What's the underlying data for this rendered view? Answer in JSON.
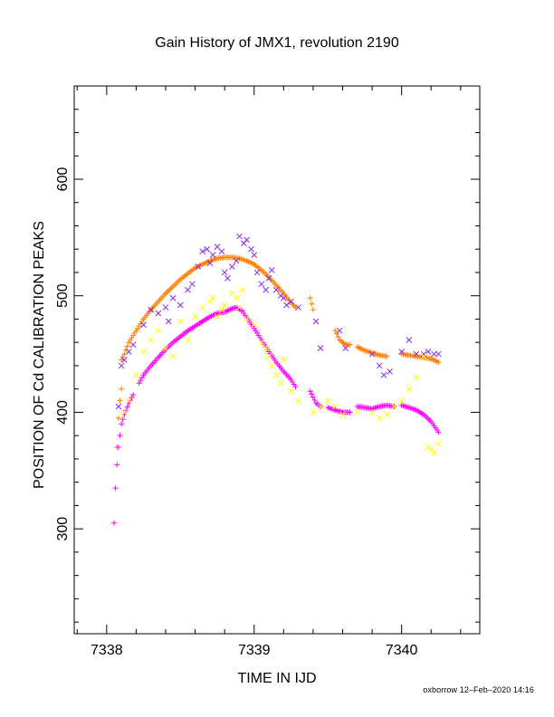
{
  "chart_data": {
    "type": "scatter",
    "title": "Gain History of JMX1, revolution 2190",
    "xlabel": "TIME IN IJD",
    "ylabel": "POSITION OF Cd CALIBRATION PEAKS",
    "xlim": [
      7337.78,
      7340.53
    ],
    "ylim": [
      210,
      680
    ],
    "x_ticks": [
      7338,
      7339,
      7340
    ],
    "y_ticks": [
      300,
      400,
      500,
      600
    ],
    "grid": false,
    "colors": {
      "purple": "#8a2be2",
      "orange": "#ff7f00",
      "yellow": "#ffff00",
      "magenta": "#ff00ff"
    },
    "series": [
      {
        "marker": "plus",
        "color": "orange",
        "dense": true,
        "segments": [
          [
            [
              7338.07,
              370
            ],
            [
              7338.08,
              395
            ],
            [
              7338.09,
              410
            ],
            [
              7338.1,
              420
            ]
          ],
          [
            [
              7338.1,
              445
            ],
            [
              7338.12,
              450
            ],
            [
              7338.15,
              460
            ],
            [
              7338.2,
              470
            ],
            [
              7338.25,
              480
            ],
            [
              7338.3,
              488
            ],
            [
              7338.35,
              495
            ],
            [
              7338.4,
              502
            ],
            [
              7338.45,
              508
            ],
            [
              7338.5,
              514
            ],
            [
              7338.55,
              519
            ],
            [
              7338.6,
              524
            ],
            [
              7338.65,
              527
            ],
            [
              7338.7,
              530
            ],
            [
              7338.75,
              532
            ],
            [
              7338.8,
              533
            ],
            [
              7338.85,
              533
            ],
            [
              7338.9,
              532
            ],
            [
              7338.95,
              530
            ],
            [
              7339.0,
              527
            ],
            [
              7339.05,
              522
            ],
            [
              7339.1,
              516
            ],
            [
              7339.15,
              509
            ],
            [
              7339.2,
              502
            ],
            [
              7339.25,
              494
            ],
            [
              7339.28,
              490
            ]
          ],
          [
            [
              7339.38,
              498
            ],
            [
              7339.4,
              488
            ]
          ],
          [
            [
              7339.55,
              470
            ],
            [
              7339.58,
              462
            ],
            [
              7339.62,
              458
            ],
            [
              7339.65,
              458
            ]
          ],
          [
            [
              7339.7,
              456
            ],
            [
              7339.75,
              453
            ],
            [
              7339.8,
              451
            ],
            [
              7339.85,
              449
            ],
            [
              7339.9,
              448
            ]
          ],
          [
            [
              7340.0,
              450
            ],
            [
              7340.05,
              449
            ],
            [
              7340.1,
              448
            ],
            [
              7340.15,
              447
            ],
            [
              7340.2,
              446
            ],
            [
              7340.25,
              443
            ]
          ]
        ]
      },
      {
        "marker": "plus",
        "color": "magenta",
        "dense": true,
        "segments": [
          [
            [
              7338.05,
              305
            ],
            [
              7338.06,
              335
            ],
            [
              7338.07,
              355
            ],
            [
              7338.08,
              370
            ],
            [
              7338.09,
              380
            ],
            [
              7338.1,
              390
            ],
            [
              7338.12,
              398
            ],
            [
              7338.15,
              408
            ],
            [
              7338.18,
              415
            ]
          ],
          [
            [
              7338.22,
              425
            ],
            [
              7338.25,
              432
            ],
            [
              7338.3,
              440
            ],
            [
              7338.35,
              447
            ],
            [
              7338.4,
              454
            ],
            [
              7338.45,
              460
            ],
            [
              7338.5,
              465
            ],
            [
              7338.55,
              470
            ],
            [
              7338.6,
              474
            ],
            [
              7338.65,
              478
            ],
            [
              7338.7,
              482
            ],
            [
              7338.75,
              485
            ],
            [
              7338.8,
              486
            ],
            [
              7338.85,
              489
            ],
            [
              7338.88,
              490
            ],
            [
              7338.92,
              487
            ],
            [
              7338.95,
              481
            ],
            [
              7339.0,
              472
            ],
            [
              7339.05,
              462
            ],
            [
              7339.1,
              452
            ],
            [
              7339.15,
              443
            ],
            [
              7339.2,
              435
            ],
            [
              7339.25,
              428
            ],
            [
              7339.28,
              422
            ]
          ],
          [
            [
              7339.38,
              418
            ],
            [
              7339.4,
              413
            ],
            [
              7339.42,
              408
            ],
            [
              7339.45,
              405
            ]
          ],
          [
            [
              7339.5,
              404
            ],
            [
              7339.55,
              402
            ],
            [
              7339.6,
              400
            ],
            [
              7339.65,
              400
            ]
          ],
          [
            [
              7339.7,
              405
            ],
            [
              7339.75,
              404
            ],
            [
              7339.8,
              403
            ],
            [
              7339.85,
              405
            ],
            [
              7339.9,
              406
            ],
            [
              7339.95,
              405
            ]
          ],
          [
            [
              7340.0,
              406
            ],
            [
              7340.05,
              404
            ],
            [
              7340.1,
              402
            ],
            [
              7340.15,
              398
            ],
            [
              7340.2,
              392
            ],
            [
              7340.25,
              383
            ]
          ]
        ]
      },
      {
        "marker": "x",
        "color": "purple",
        "dense": false,
        "points": [
          [
            7338.08,
            405
          ],
          [
            7338.1,
            440
          ],
          [
            7338.12,
            445
          ],
          [
            7338.15,
            452
          ],
          [
            7338.18,
            458
          ],
          [
            7338.25,
            475
          ],
          [
            7338.3,
            488
          ],
          [
            7338.35,
            485
          ],
          [
            7338.4,
            490
          ],
          [
            7338.42,
            478
          ],
          [
            7338.45,
            498
          ],
          [
            7338.5,
            492
          ],
          [
            7338.55,
            505
          ],
          [
            7338.58,
            510
          ],
          [
            7338.62,
            525
          ],
          [
            7338.65,
            538
          ],
          [
            7338.68,
            540
          ],
          [
            7338.7,
            528
          ],
          [
            7338.72,
            535
          ],
          [
            7338.75,
            542
          ],
          [
            7338.78,
            538
          ],
          [
            7338.8,
            520
          ],
          [
            7338.82,
            515
          ],
          [
            7338.85,
            525
          ],
          [
            7338.88,
            530
          ],
          [
            7338.9,
            551
          ],
          [
            7338.93,
            545
          ],
          [
            7338.95,
            548
          ],
          [
            7338.98,
            540
          ],
          [
            7339.0,
            535
          ],
          [
            7339.02,
            520
          ],
          [
            7339.05,
            510
          ],
          [
            7339.08,
            505
          ],
          [
            7339.1,
            515
          ],
          [
            7339.12,
            522
          ],
          [
            7339.15,
            505
          ],
          [
            7339.18,
            500
          ],
          [
            7339.2,
            498
          ],
          [
            7339.22,
            492
          ],
          [
            7339.25,
            495
          ],
          [
            7339.3,
            490
          ],
          [
            7339.42,
            478
          ],
          [
            7339.45,
            455
          ],
          [
            7339.58,
            470
          ],
          [
            7339.62,
            455
          ],
          [
            7339.8,
            450
          ],
          [
            7339.85,
            440
          ],
          [
            7339.88,
            432
          ],
          [
            7339.92,
            435
          ],
          [
            7340.0,
            452
          ],
          [
            7340.05,
            462
          ],
          [
            7340.1,
            450
          ],
          [
            7340.15,
            450
          ],
          [
            7340.18,
            452
          ],
          [
            7340.22,
            450
          ],
          [
            7340.25,
            450
          ]
        ]
      },
      {
        "marker": "x",
        "color": "yellow",
        "dense": false,
        "points": [
          [
            7338.12,
            400
          ],
          [
            7338.15,
            410
          ],
          [
            7338.2,
            432
          ],
          [
            7338.25,
            452
          ],
          [
            7338.3,
            462
          ],
          [
            7338.35,
            470
          ],
          [
            7338.4,
            455
          ],
          [
            7338.45,
            448
          ],
          [
            7338.5,
            478
          ],
          [
            7338.55,
            462
          ],
          [
            7338.6,
            482
          ],
          [
            7338.65,
            490
          ],
          [
            7338.7,
            495
          ],
          [
            7338.72,
            498
          ],
          [
            7338.75,
            482
          ],
          [
            7338.78,
            488
          ],
          [
            7338.8,
            492
          ],
          [
            7338.85,
            502
          ],
          [
            7338.88,
            498
          ],
          [
            7338.9,
            490
          ],
          [
            7338.92,
            505
          ],
          [
            7338.95,
            480
          ],
          [
            7339.0,
            475
          ],
          [
            7339.05,
            460
          ],
          [
            7339.08,
            455
          ],
          [
            7339.1,
            448
          ],
          [
            7339.12,
            440
          ],
          [
            7339.15,
            432
          ],
          [
            7339.18,
            425
          ],
          [
            7339.2,
            445
          ],
          [
            7339.25,
            418
          ],
          [
            7339.3,
            410
          ],
          [
            7339.4,
            400
          ],
          [
            7339.45,
            405
          ],
          [
            7339.5,
            410
          ],
          [
            7339.55,
            405
          ],
          [
            7339.6,
            398
          ],
          [
            7339.7,
            400
          ],
          [
            7339.8,
            400
          ],
          [
            7339.85,
            395
          ],
          [
            7339.9,
            398
          ],
          [
            7339.95,
            405
          ],
          [
            7340.0,
            410
          ],
          [
            7340.05,
            420
          ],
          [
            7340.1,
            430
          ],
          [
            7340.15,
            448
          ],
          [
            7340.18,
            370
          ],
          [
            7340.2,
            368
          ],
          [
            7340.22,
            365
          ],
          [
            7340.25,
            373
          ]
        ]
      }
    ]
  },
  "footer": {
    "credit": "oxborrow 12–Feb–2020 14:16"
  }
}
